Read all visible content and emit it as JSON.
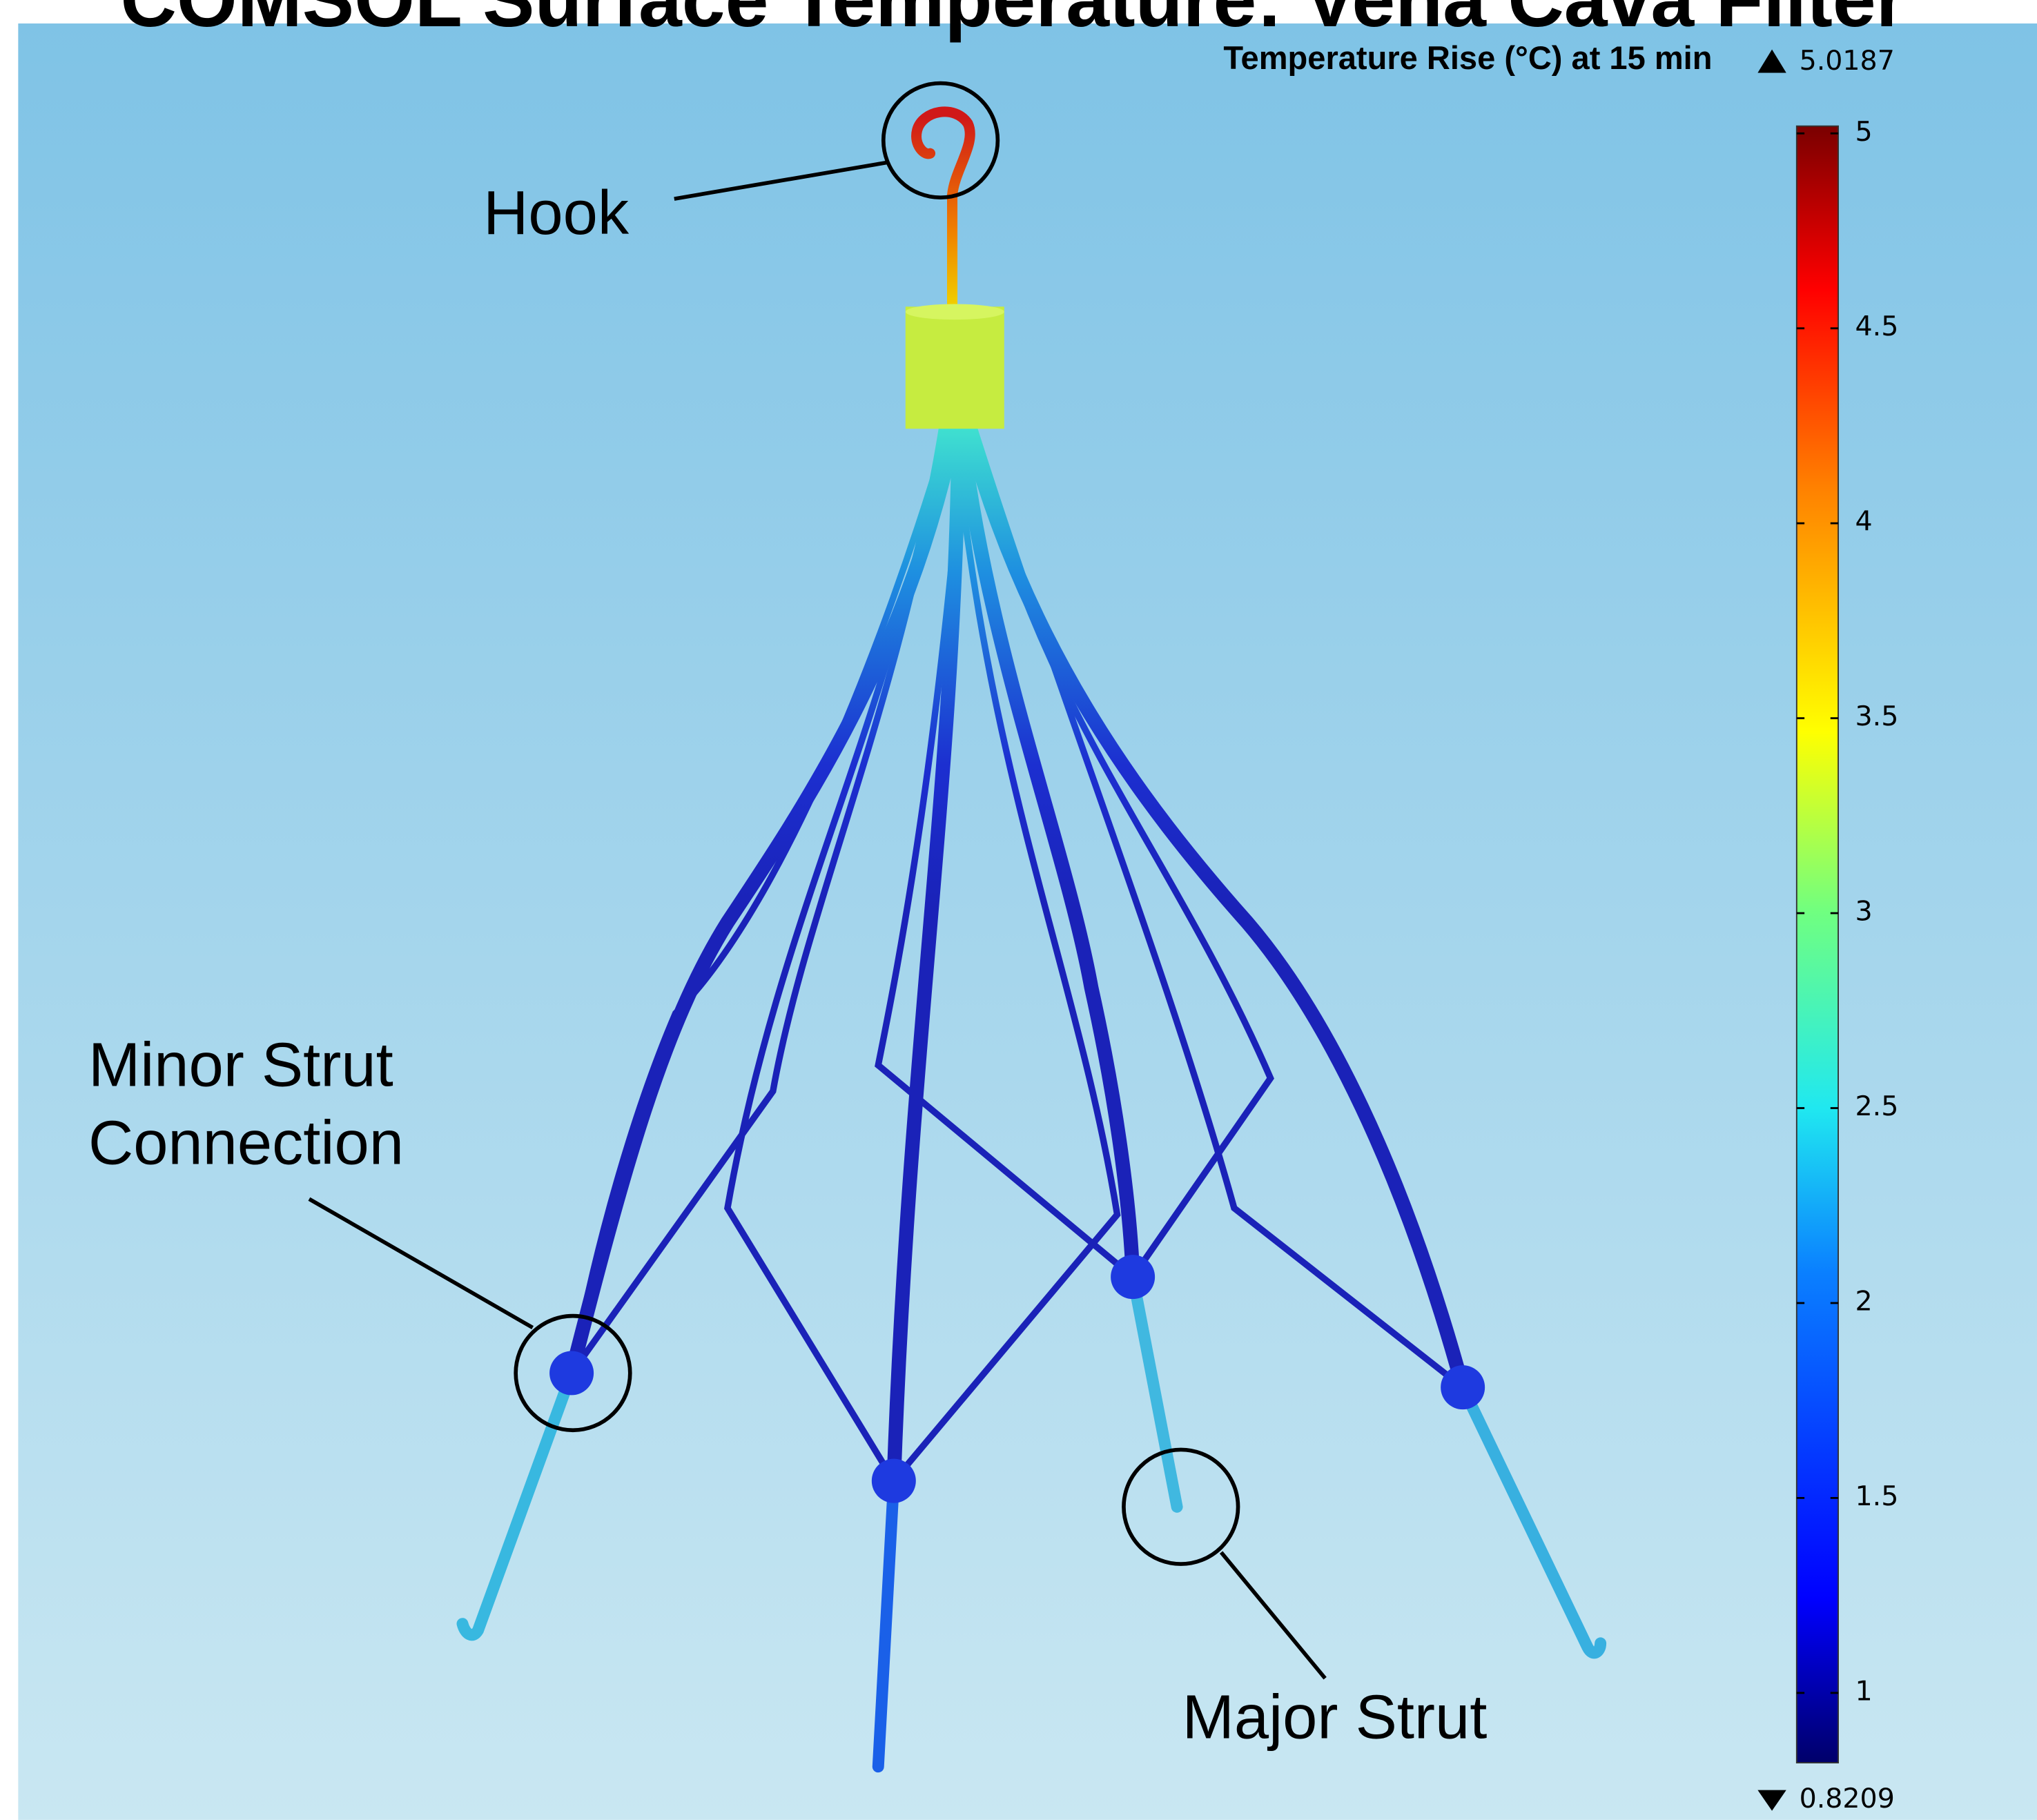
{
  "title": "COMSOL Surface Temperature: Vena Cava Filter",
  "colorbar": {
    "title": "Temperature Rise (°C) at 15 min",
    "max": 5.0187,
    "min": 0.8209,
    "ticks": [
      1,
      1.5,
      2,
      2.5,
      3,
      3.5,
      4,
      4.5,
      5
    ]
  },
  "labels": {
    "hook": "Hook",
    "minor_strut_connection": [
      "Minor Strut",
      "Connection"
    ],
    "major_strut": "Major Strut"
  }
}
